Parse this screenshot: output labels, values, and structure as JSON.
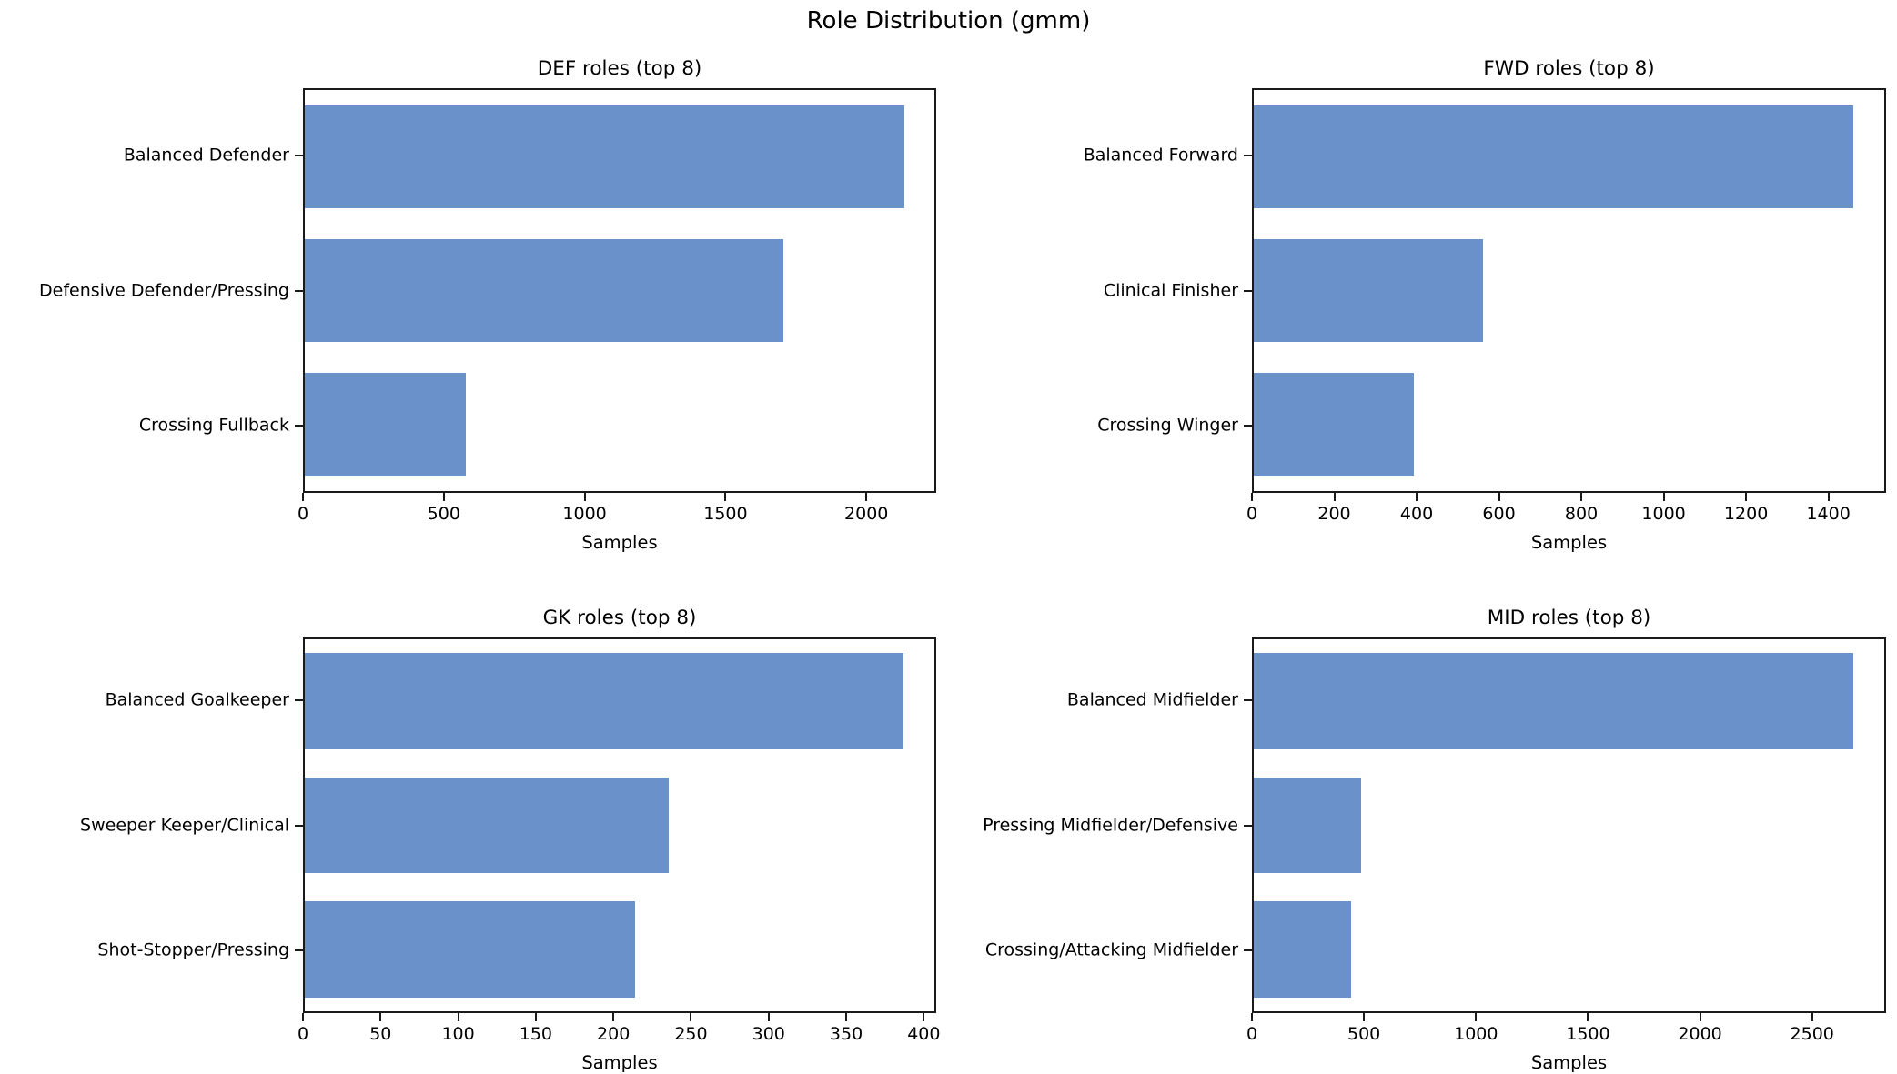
{
  "figure": {
    "suptitle": "Role Distribution (gmm)",
    "background": "#ffffff"
  },
  "colors": {
    "bar": "#6b91ca",
    "spine": "#1a1a1a",
    "text": "#000000"
  },
  "chart_data": [
    {
      "type": "bar",
      "orientation": "horizontal",
      "title": "DEF roles (top 8)",
      "xlabel": "Samples",
      "categories": [
        "Balanced Defender",
        "Defensive Defender/Pressing",
        "Crossing Fullback"
      ],
      "values": [
        2140,
        1710,
        575
      ],
      "xlim": [
        0,
        2248
      ],
      "xticks": [
        0,
        500,
        1000,
        1500,
        2000
      ],
      "grid": false,
      "legend": false
    },
    {
      "type": "bar",
      "orientation": "horizontal",
      "title": "FWD roles (top 8)",
      "xlabel": "Samples",
      "categories": [
        "Balanced Forward",
        "Clinical Finisher",
        "Crossing Winger"
      ],
      "values": [
        1465,
        560,
        390
      ],
      "xlim": [
        0,
        1540
      ],
      "xticks": [
        0,
        200,
        400,
        600,
        800,
        1000,
        1200,
        1400
      ],
      "grid": false,
      "legend": false
    },
    {
      "type": "bar",
      "orientation": "horizontal",
      "title": "GK roles (top 8)",
      "xlabel": "Samples",
      "categories": [
        "Balanced Goalkeeper",
        "Sweeper Keeper/Clinical",
        "Shot-Stopper/Pressing"
      ],
      "values": [
        388,
        236,
        214
      ],
      "xlim": [
        0,
        408
      ],
      "xticks": [
        0,
        50,
        100,
        150,
        200,
        250,
        300,
        350,
        400
      ],
      "grid": false,
      "legend": false
    },
    {
      "type": "bar",
      "orientation": "horizontal",
      "title": "MID roles (top 8)",
      "xlabel": "Samples",
      "categories": [
        "Balanced Midfielder",
        "Pressing Midfielder/Defensive",
        "Crossing/Attacking Midfielder"
      ],
      "values": [
        2690,
        480,
        435
      ],
      "xlim": [
        0,
        2830
      ],
      "xticks": [
        0,
        500,
        1000,
        1500,
        2000,
        2500
      ],
      "grid": false,
      "legend": false
    }
  ]
}
